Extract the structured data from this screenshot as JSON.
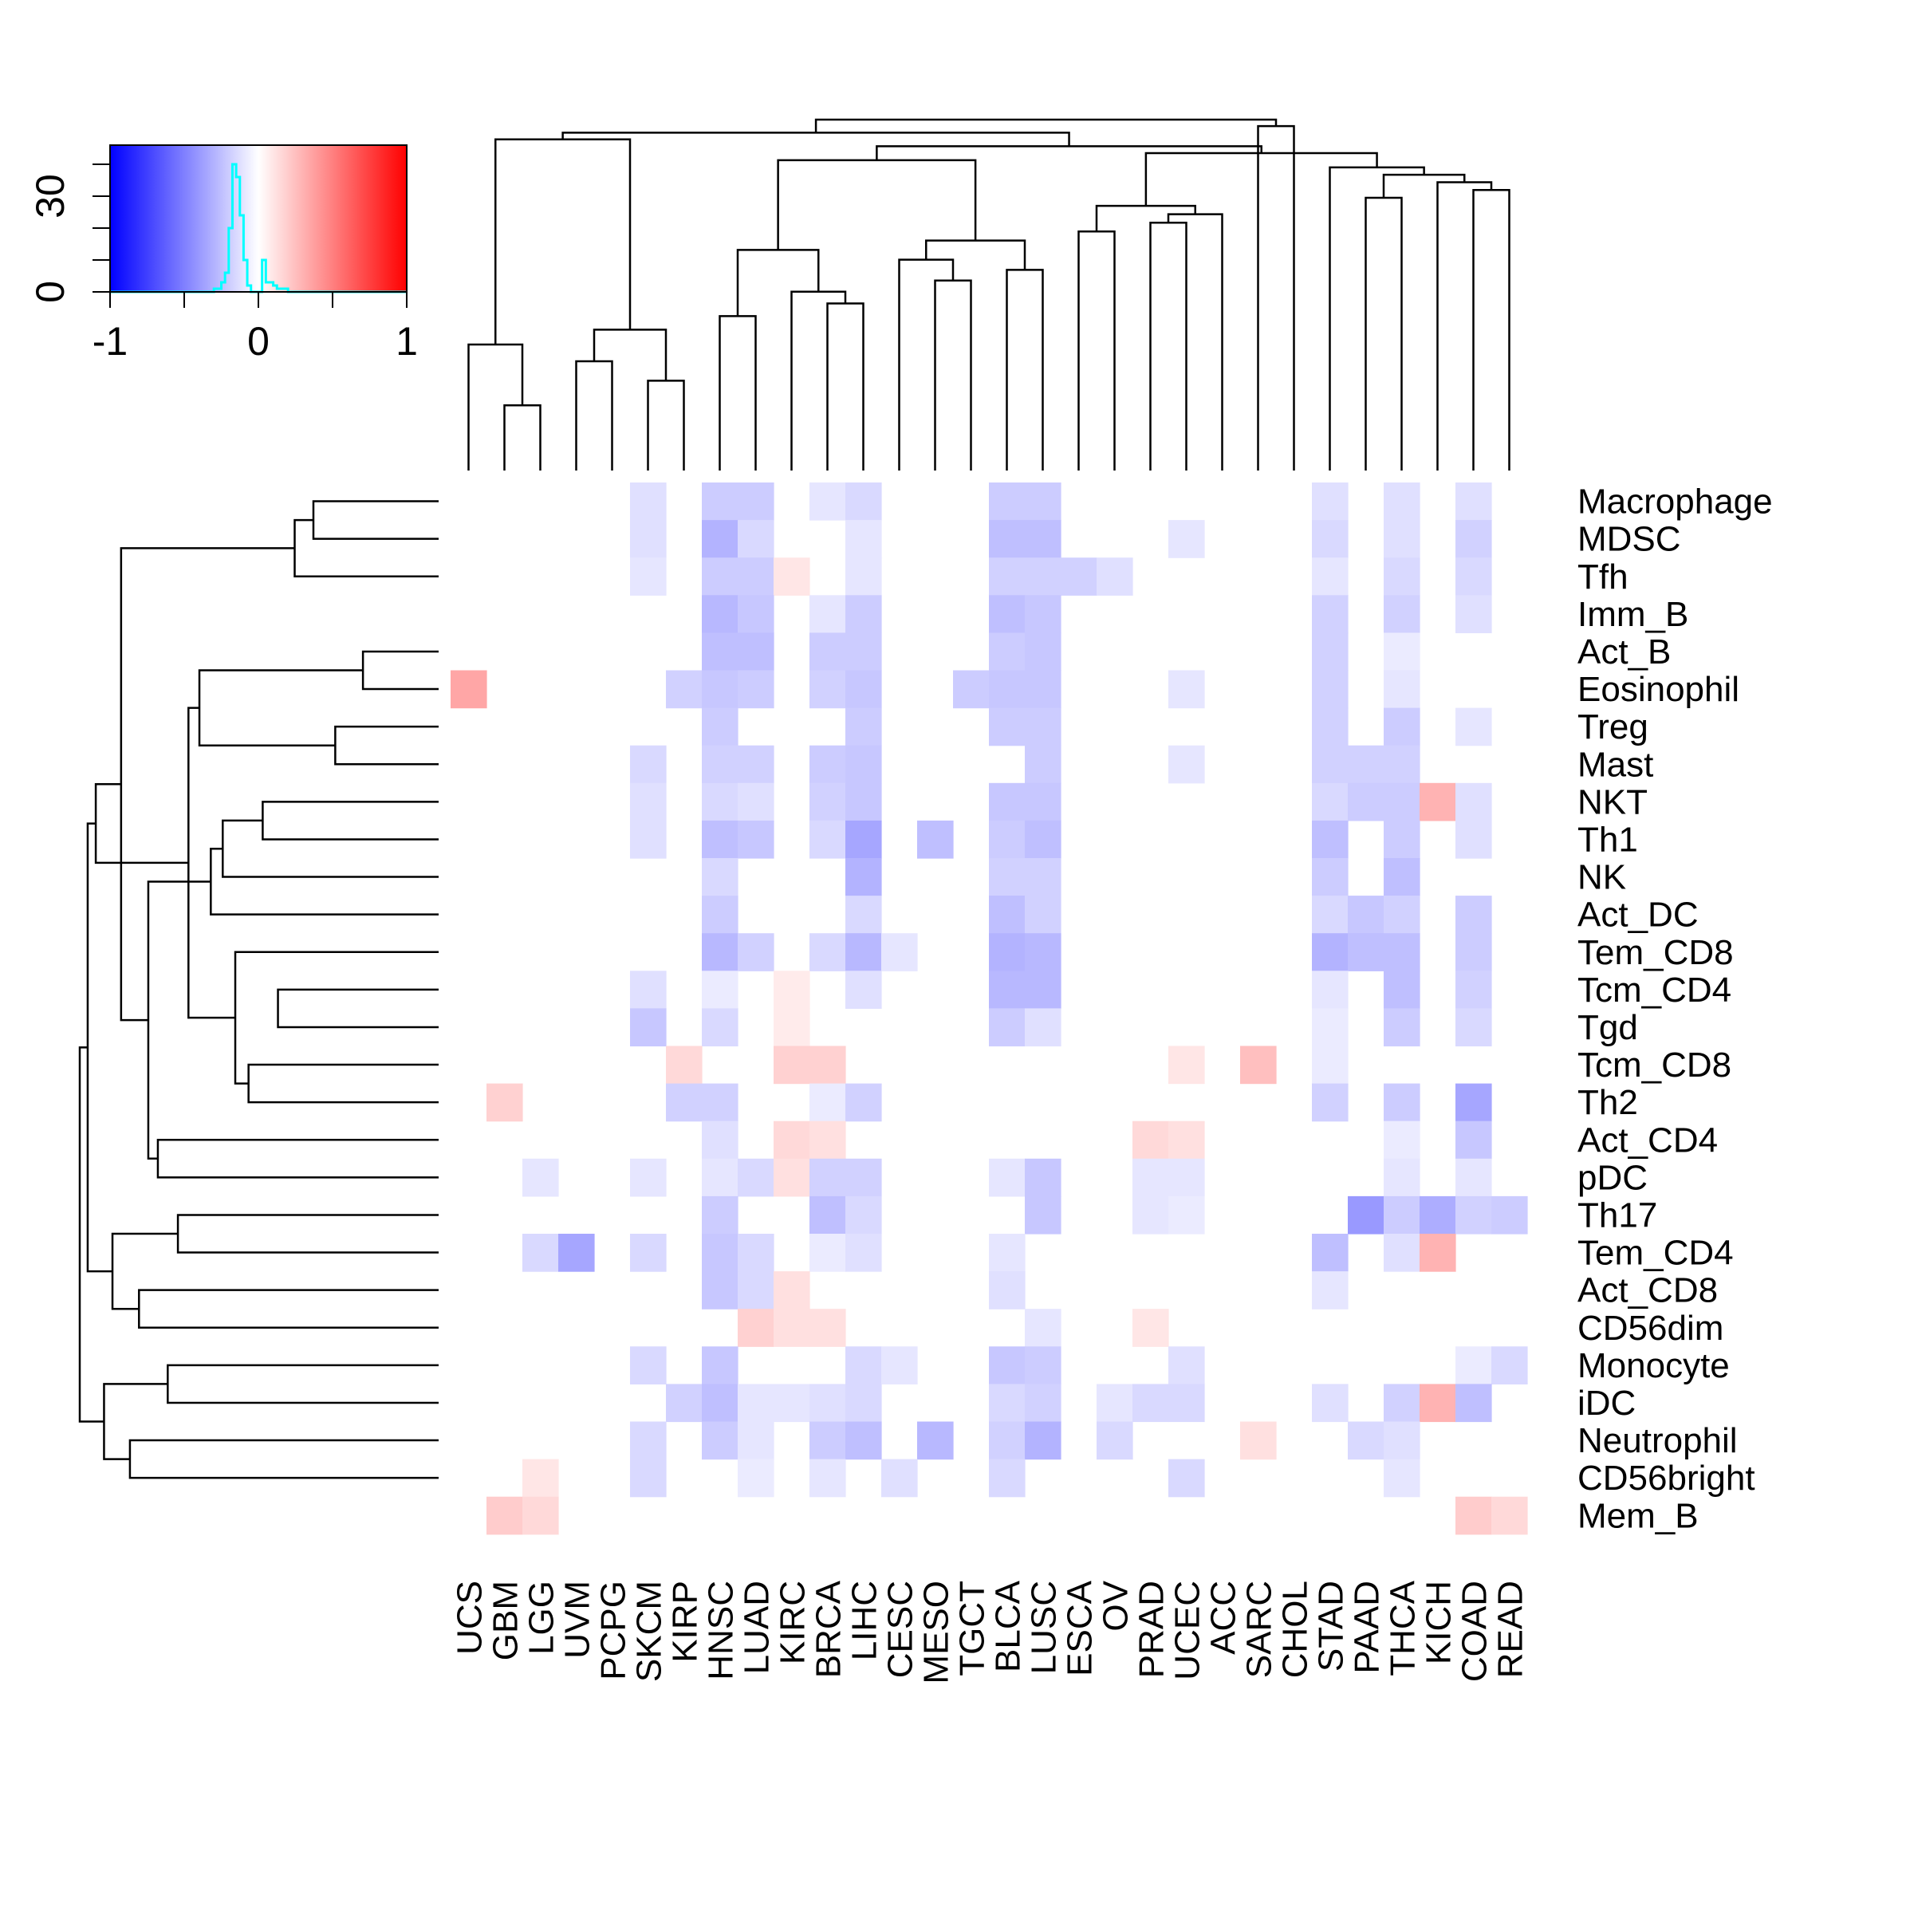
{
  "chart_data": {
    "type": "heatmap",
    "title": "",
    "xlabel": "",
    "ylabel": "",
    "columns": [
      "UCS",
      "GBM",
      "LGG",
      "UVM",
      "PCPG",
      "SKCM",
      "KIRP",
      "HNSC",
      "LUAD",
      "KIRC",
      "BRCA",
      "LIHC",
      "CESC",
      "MESO",
      "TGCT",
      "BLCA",
      "LUSC",
      "ESCA",
      "OV",
      "PRAD",
      "UCEC",
      "ACC",
      "SARC",
      "CHOL",
      "STAD",
      "PAAD",
      "THCA",
      "KICH",
      "COAD",
      "READ"
    ],
    "rows": [
      "Macrophage",
      "MDSC",
      "Tfh",
      "Imm_B",
      "Act_B",
      "Eosinophil",
      "Treg",
      "Mast",
      "NKT",
      "Th1",
      "NK",
      "Act_DC",
      "Tem_CD8",
      "Tcm_CD4",
      "Tgd",
      "Tcm_CD8",
      "Th2",
      "Act_CD4",
      "pDC",
      "Th17",
      "Tem_CD4",
      "Act_CD8",
      "CD56dim",
      "Monocyte",
      "iDC",
      "Neutrophil",
      "CD56bright",
      "Mem_B"
    ],
    "values": [
      [
        0,
        0,
        0,
        0,
        0,
        -0.12,
        0,
        -0.2,
        -0.2,
        0,
        -0.1,
        -0.15,
        0,
        0,
        0,
        -0.2,
        -0.2,
        0,
        0,
        0,
        0,
        0,
        0,
        0,
        -0.12,
        0,
        -0.12,
        0,
        -0.12,
        0
      ],
      [
        0,
        0,
        0,
        0,
        0,
        -0.12,
        0,
        -0.3,
        -0.15,
        0,
        0,
        -0.1,
        0,
        0,
        0,
        -0.25,
        -0.25,
        0,
        0,
        0,
        -0.1,
        0,
        0,
        0,
        -0.15,
        0,
        -0.12,
        0,
        -0.18,
        0
      ],
      [
        0,
        0,
        0,
        0,
        0,
        -0.1,
        0,
        -0.2,
        -0.2,
        0.1,
        0,
        -0.1,
        0,
        0,
        0,
        -0.18,
        -0.18,
        -0.18,
        -0.12,
        0,
        0,
        0,
        0,
        0,
        -0.1,
        0,
        -0.15,
        0,
        -0.15,
        0
      ],
      [
        0,
        0,
        0,
        0,
        0,
        0,
        0,
        -0.28,
        -0.22,
        0,
        -0.1,
        -0.2,
        0,
        0,
        0,
        -0.25,
        -0.22,
        0,
        0,
        0,
        0,
        0,
        0,
        0,
        -0.18,
        0,
        -0.18,
        0,
        -0.12,
        0
      ],
      [
        0,
        0,
        0,
        0,
        0,
        0,
        0,
        -0.25,
        -0.25,
        0,
        -0.2,
        -0.2,
        0,
        0,
        0,
        -0.2,
        -0.22,
        0,
        0,
        0,
        0,
        0,
        0,
        0,
        -0.18,
        0,
        -0.08,
        0,
        0,
        0
      ],
      [
        0.35,
        0,
        0,
        0,
        0,
        0,
        -0.18,
        -0.22,
        -0.2,
        0,
        -0.18,
        -0.22,
        0,
        0,
        -0.2,
        -0.22,
        -0.22,
        0,
        0,
        0,
        -0.1,
        0,
        0,
        0,
        -0.18,
        0,
        -0.1,
        0,
        0,
        0
      ],
      [
        0,
        0,
        0,
        0,
        0,
        0,
        0,
        -0.2,
        0,
        0,
        0,
        -0.2,
        0,
        0,
        0,
        -0.2,
        -0.2,
        0,
        0,
        0,
        0,
        0,
        0,
        0,
        -0.18,
        0,
        -0.2,
        0,
        -0.1,
        0
      ],
      [
        0,
        0,
        0,
        0,
        0,
        -0.15,
        0,
        -0.18,
        -0.18,
        0,
        -0.2,
        -0.22,
        0,
        0,
        0,
        0,
        -0.2,
        0,
        0,
        0,
        -0.1,
        0,
        0,
        0,
        -0.18,
        -0.18,
        -0.18,
        0,
        0,
        0
      ],
      [
        0,
        0,
        0,
        0,
        0,
        -0.12,
        0,
        -0.15,
        -0.12,
        0,
        -0.18,
        -0.22,
        0,
        0,
        0,
        -0.22,
        -0.22,
        0,
        0,
        0,
        0,
        0,
        0,
        0,
        -0.15,
        -0.2,
        -0.2,
        0.3,
        -0.12,
        0
      ],
      [
        0,
        0,
        0,
        0,
        0,
        -0.12,
        0,
        -0.25,
        -0.22,
        0,
        -0.15,
        -0.35,
        0,
        -0.25,
        0,
        -0.2,
        -0.25,
        0,
        0,
        0,
        0,
        0,
        0,
        0,
        -0.25,
        0,
        -0.2,
        0,
        -0.12,
        0
      ],
      [
        0,
        0,
        0,
        0,
        0,
        0,
        0,
        -0.15,
        0,
        0,
        0,
        -0.3,
        0,
        0,
        0,
        -0.18,
        -0.18,
        0,
        0,
        0,
        0,
        0,
        0,
        0,
        -0.2,
        0,
        -0.25,
        0,
        0,
        0
      ],
      [
        0,
        0,
        0,
        0,
        0,
        0,
        0,
        -0.2,
        0,
        0,
        0,
        -0.15,
        0,
        0,
        0,
        -0.25,
        -0.18,
        0,
        0,
        0,
        0,
        0,
        0,
        0,
        -0.15,
        -0.22,
        -0.18,
        0,
        -0.2,
        0
      ],
      [
        0,
        0,
        0,
        0,
        0,
        0,
        0,
        -0.28,
        -0.18,
        0,
        -0.15,
        -0.28,
        -0.1,
        0,
        0,
        -0.3,
        -0.28,
        0,
        0,
        0,
        0,
        0,
        0,
        0,
        -0.3,
        -0.25,
        -0.25,
        0,
        -0.2,
        0
      ],
      [
        0,
        0,
        0,
        0,
        0,
        -0.12,
        0,
        -0.08,
        0,
        0.08,
        0,
        -0.12,
        0,
        0,
        0,
        -0.28,
        -0.28,
        0,
        0,
        0,
        0,
        0,
        0,
        0,
        -0.1,
        0,
        -0.25,
        0,
        -0.18,
        0
      ],
      [
        0,
        0,
        0,
        0,
        0,
        -0.22,
        0,
        -0.15,
        0,
        0.08,
        0,
        0,
        0,
        0,
        0,
        -0.2,
        -0.12,
        0,
        0,
        0,
        0,
        0,
        0,
        0,
        -0.08,
        0,
        -0.2,
        0,
        -0.15,
        0
      ],
      [
        0,
        0,
        0,
        0,
        0,
        0,
        0.15,
        0,
        0,
        0.18,
        0.18,
        0,
        0,
        0,
        0,
        0,
        0,
        0,
        0,
        0,
        0.1,
        0,
        0.25,
        0,
        -0.08,
        0,
        0,
        0,
        0,
        0
      ],
      [
        0,
        0.18,
        0,
        0,
        0,
        0,
        -0.18,
        -0.18,
        0,
        0,
        -0.08,
        -0.18,
        0,
        0,
        0,
        0,
        0,
        0,
        0,
        0,
        0,
        0,
        0,
        0,
        -0.18,
        0,
        -0.2,
        0,
        -0.35,
        0
      ],
      [
        0,
        0,
        0,
        0,
        0,
        0,
        0,
        -0.12,
        0,
        0.15,
        0.12,
        0,
        0,
        0,
        0,
        0,
        0,
        0,
        0,
        0.15,
        0.12,
        0,
        0,
        0,
        0,
        0,
        -0.08,
        0,
        -0.22,
        0
      ],
      [
        0,
        0,
        -0.1,
        0,
        0,
        -0.1,
        0,
        -0.1,
        -0.15,
        0.12,
        -0.18,
        -0.18,
        0,
        0,
        0,
        -0.1,
        -0.22,
        0,
        0,
        -0.1,
        -0.1,
        0,
        0,
        0,
        0,
        0,
        -0.1,
        0,
        -0.1,
        0
      ],
      [
        0,
        0,
        0,
        0,
        0,
        0,
        0,
        -0.2,
        0,
        0,
        -0.25,
        -0.15,
        0,
        0,
        0,
        0,
        -0.22,
        0,
        0,
        -0.1,
        -0.08,
        0,
        0,
        0,
        0,
        -0.4,
        -0.2,
        -0.32,
        -0.18,
        -0.2
      ],
      [
        0,
        0,
        -0.15,
        -0.35,
        0,
        -0.15,
        0,
        -0.22,
        -0.15,
        0,
        -0.08,
        -0.12,
        0,
        0,
        0,
        -0.1,
        0,
        0,
        0,
        0,
        0,
        0,
        0,
        0,
        -0.25,
        0,
        -0.12,
        0.3,
        0,
        0
      ],
      [
        0,
        0,
        0,
        0,
        0,
        0,
        0,
        -0.22,
        -0.15,
        0.12,
        0,
        0,
        0,
        0,
        0,
        -0.12,
        0,
        0,
        0,
        0,
        0,
        0,
        0,
        0,
        -0.1,
        0,
        0,
        0,
        0,
        0
      ],
      [
        0,
        0,
        0,
        0,
        0,
        0,
        0,
        0,
        0.18,
        0.12,
        0.12,
        0,
        0,
        0,
        0,
        0,
        -0.1,
        0,
        0,
        0.1,
        0,
        0,
        0,
        0,
        0,
        0,
        0,
        0,
        0,
        0
      ],
      [
        0,
        0,
        0,
        0,
        0,
        -0.15,
        0,
        -0.22,
        0,
        0,
        0,
        -0.15,
        -0.1,
        0,
        0,
        -0.22,
        -0.2,
        0,
        0,
        0,
        -0.12,
        0,
        0,
        0,
        0,
        0,
        0,
        0,
        -0.08,
        -0.15
      ],
      [
        0,
        0,
        0,
        0,
        0,
        0,
        -0.18,
        -0.25,
        -0.1,
        -0.1,
        -0.12,
        -0.15,
        0,
        0,
        0,
        -0.15,
        -0.18,
        0,
        -0.1,
        -0.15,
        -0.15,
        0,
        0,
        0,
        -0.12,
        0,
        -0.18,
        0.3,
        -0.25,
        0
      ],
      [
        0,
        0,
        0,
        0,
        0,
        -0.15,
        0,
        -0.2,
        -0.1,
        0,
        -0.2,
        -0.25,
        0,
        -0.28,
        0,
        -0.18,
        -0.3,
        0,
        -0.15,
        0,
        0,
        0,
        0.12,
        0,
        0,
        -0.15,
        -0.12,
        0,
        0,
        0
      ],
      [
        0,
        0,
        0.1,
        0,
        0,
        -0.15,
        0,
        0,
        -0.08,
        0,
        -0.1,
        0,
        -0.12,
        0,
        0,
        -0.15,
        0,
        0,
        0,
        0,
        -0.15,
        0,
        0,
        0,
        0,
        0,
        -0.1,
        0,
        0,
        0
      ],
      [
        0,
        0.2,
        0.15,
        0,
        0,
        0,
        0,
        0,
        0,
        0,
        0,
        0,
        0,
        0,
        0,
        0,
        0,
        0,
        0,
        0,
        0,
        0,
        0,
        0,
        0,
        0,
        0,
        0,
        0.2,
        0.15
      ]
    ],
    "color_scale": {
      "range": [
        -1,
        1
      ],
      "low_color": "#0000ff",
      "mid_color": "#ffffff",
      "high_color": "#ff0000",
      "histogram_color": "#00ffff",
      "tick_labels": [
        "-1",
        "0",
        "1"
      ],
      "count_tick_labels": [
        "0",
        "30"
      ],
      "histogram_counts": [
        0,
        0,
        0,
        0,
        0,
        0,
        0,
        0,
        0,
        0,
        0,
        0,
        0,
        0,
        0,
        0,
        0,
        0,
        0,
        0,
        0,
        0,
        0,
        0,
        0,
        0,
        0,
        0,
        1,
        1,
        3,
        6,
        20,
        40,
        36,
        24,
        10,
        2,
        0,
        0,
        0,
        10,
        3,
        3,
        2,
        1,
        1,
        1,
        0,
        0,
        0,
        0,
        0,
        0,
        0,
        0,
        0,
        0,
        0,
        0,
        0,
        0,
        0,
        0,
        0,
        0,
        0,
        0,
        0,
        0,
        0,
        0,
        0,
        0,
        0,
        0,
        0,
        0,
        0,
        0
      ]
    },
    "row_dendrogram": [
      [
        4,
        5
      ],
      [
        6,
        7
      ],
      [
        0,
        1
      ],
      [
        -3,
        2
      ],
      [
        13,
        14
      ],
      [
        8,
        9
      ],
      [
        15,
        16
      ],
      [
        -7,
        12
      ],
      [
        -6,
        10
      ],
      [
        -9,
        11
      ],
      [
        -2,
        -1
      ],
      [
        -11,
        -8
      ],
      [
        19,
        20
      ],
      [
        23,
        24
      ],
      [
        17,
        18
      ],
      [
        -15,
        -10
      ],
      [
        21,
        22
      ],
      [
        25,
        26
      ],
      [
        -16,
        -4
      ],
      [
        -17,
        -13
      ],
      [
        -14,
        -18
      ],
      [
        -19,
        -12
      ],
      [
        -22,
        -20
      ],
      [
        -23,
        -21
      ]
    ],
    "col_dendrogram": [
      [
        1,
        2
      ],
      [
        5,
        6
      ],
      [
        3,
        4
      ],
      [
        -1,
        0
      ],
      [
        -3,
        -2
      ],
      [
        7,
        8
      ],
      [
        10,
        11
      ],
      [
        9,
        -7
      ],
      [
        13,
        14
      ],
      [
        15,
        16
      ],
      [
        12,
        -9
      ],
      [
        -6,
        -8
      ],
      [
        -10,
        -11
      ],
      [
        17,
        18
      ],
      [
        19,
        20
      ],
      [
        -15,
        21
      ],
      [
        -14,
        -16
      ],
      [
        25,
        26
      ],
      [
        28,
        29
      ],
      [
        27,
        -19
      ],
      [
        -18,
        -20
      ],
      [
        24,
        -21
      ],
      [
        -12,
        -13
      ],
      [
        -17,
        -22
      ],
      [
        -23,
        -24
      ],
      [
        -4,
        -5
      ],
      [
        -26,
        -25
      ],
      [
        22,
        23
      ],
      [
        -28,
        -27
      ]
    ]
  }
}
